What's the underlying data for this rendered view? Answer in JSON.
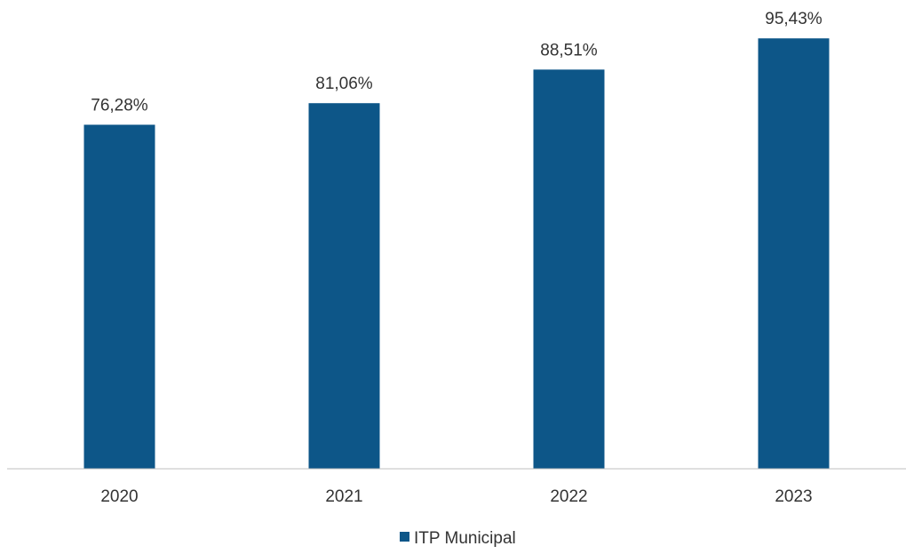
{
  "chart_data": {
    "type": "bar",
    "categories": [
      "2020",
      "2021",
      "2022",
      "2023"
    ],
    "series": [
      {
        "name": "ITP Municipal",
        "values": [
          76.28,
          81.06,
          88.51,
          95.43
        ],
        "data_labels": [
          "76,28%",
          "81,06%",
          "88,51%",
          "95,43%"
        ],
        "color": "#0d5688"
      }
    ],
    "ylim": [
      0,
      100
    ],
    "grid": false,
    "y_axis_visible": false,
    "legend": "bottom-center",
    "axis_color": "#bfbfbf"
  }
}
